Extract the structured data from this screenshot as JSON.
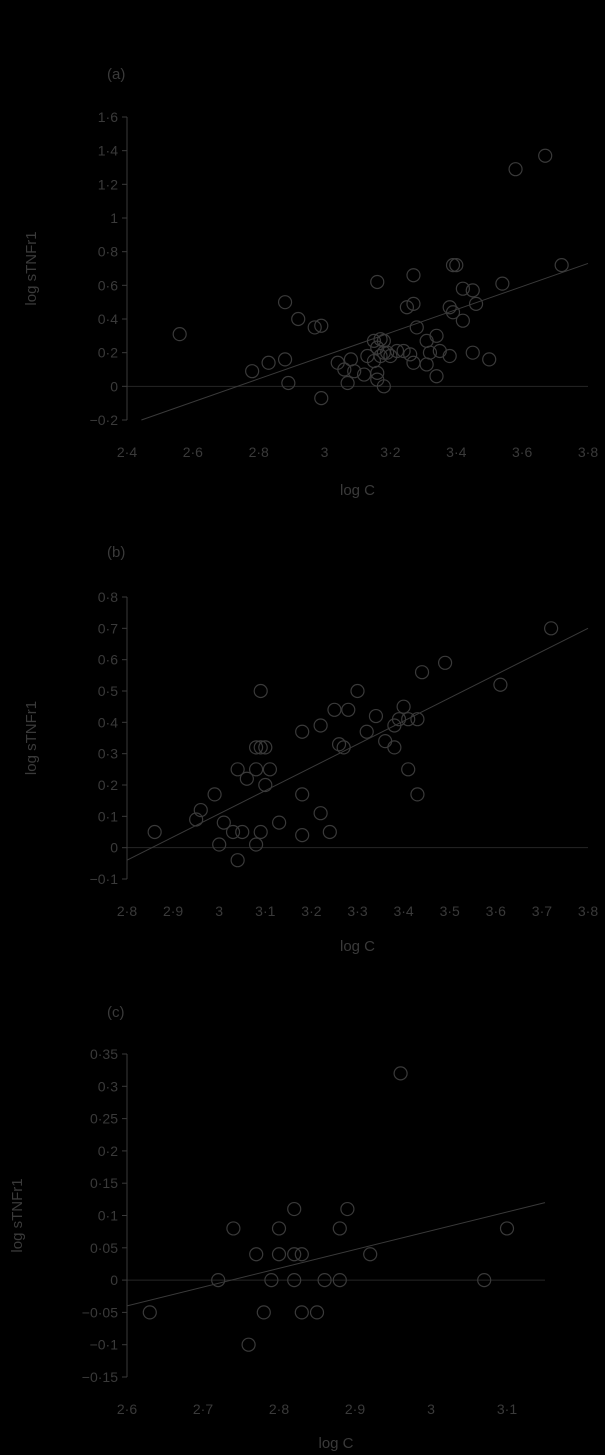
{
  "colors": {
    "background": "#000000",
    "foreground": "#3a3a3a",
    "zero_line": "#262626"
  },
  "chart_data": [
    {
      "type": "scatter",
      "panel_label": "(a)",
      "xlabel": "log C",
      "ylabel": "log sTNFr1",
      "xlim": [
        2.4,
        3.8
      ],
      "ylim": [
        -0.2,
        1.6
      ],
      "xticks": [
        2.4,
        2.6,
        2.8,
        3.0,
        3.2,
        3.4,
        3.6,
        3.8
      ],
      "xtick_labels": [
        "2·4",
        "2·6",
        "2·8",
        "3",
        "3·2",
        "3·4",
        "3·6",
        "3·8"
      ],
      "yticks": [
        -0.2,
        0,
        0.2,
        0.4,
        0.6,
        0.8,
        1.0,
        1.2,
        1.4,
        1.6
      ],
      "ytick_labels": [
        "−0·2",
        "0",
        "0·2",
        "0·4",
        "0·6",
        "0·8",
        "1",
        "1·2",
        "1·4",
        "1·6"
      ],
      "points": [
        [
          2.56,
          0.31
        ],
        [
          2.78,
          0.09
        ],
        [
          2.83,
          0.14
        ],
        [
          2.88,
          0.5
        ],
        [
          2.88,
          0.16
        ],
        [
          2.89,
          0.02
        ],
        [
          2.92,
          0.4
        ],
        [
          2.97,
          0.35
        ],
        [
          2.99,
          0.36
        ],
        [
          2.99,
          -0.07
        ],
        [
          3.04,
          0.14
        ],
        [
          3.06,
          0.1
        ],
        [
          3.07,
          0.02
        ],
        [
          3.08,
          0.16
        ],
        [
          3.09,
          0.09
        ],
        [
          3.12,
          0.07
        ],
        [
          3.13,
          0.18
        ],
        [
          3.15,
          0.15
        ],
        [
          3.15,
          0.27
        ],
        [
          3.16,
          0.62
        ],
        [
          3.16,
          0.23
        ],
        [
          3.16,
          0.08
        ],
        [
          3.16,
          0.04
        ],
        [
          3.17,
          0.28
        ],
        [
          3.17,
          0.18
        ],
        [
          3.18,
          0.27
        ],
        [
          3.18,
          0.2
        ],
        [
          3.18,
          0.0
        ],
        [
          3.19,
          0.2
        ],
        [
          3.2,
          0.18
        ],
        [
          3.22,
          0.21
        ],
        [
          3.24,
          0.21
        ],
        [
          3.25,
          0.47
        ],
        [
          3.26,
          0.19
        ],
        [
          3.27,
          0.49
        ],
        [
          3.27,
          0.14
        ],
        [
          3.27,
          0.66
        ],
        [
          3.28,
          0.35
        ],
        [
          3.31,
          0.13
        ],
        [
          3.31,
          0.27
        ],
        [
          3.32,
          0.2
        ],
        [
          3.34,
          0.06
        ],
        [
          3.34,
          0.3
        ],
        [
          3.35,
          0.21
        ],
        [
          3.38,
          0.47
        ],
        [
          3.38,
          0.18
        ],
        [
          3.39,
          0.72
        ],
        [
          3.39,
          0.44
        ],
        [
          3.4,
          0.72
        ],
        [
          3.42,
          0.58
        ],
        [
          3.42,
          0.39
        ],
        [
          3.45,
          0.57
        ],
        [
          3.45,
          0.2
        ],
        [
          3.46,
          0.49
        ],
        [
          3.5,
          0.16
        ],
        [
          3.54,
          0.61
        ],
        [
          3.58,
          1.29
        ],
        [
          3.67,
          1.37
        ],
        [
          3.72,
          0.72
        ]
      ],
      "fit_line": {
        "x": [
          2.4,
          3.8
        ],
        "y": [
          -0.23,
          0.73
        ]
      }
    },
    {
      "type": "scatter",
      "panel_label": "(b)",
      "xlabel": "log C",
      "ylabel": "log sTNFr1",
      "xlim": [
        2.8,
        3.8
      ],
      "ylim": [
        -0.1,
        0.8
      ],
      "xticks": [
        2.8,
        2.9,
        3.0,
        3.1,
        3.2,
        3.3,
        3.4,
        3.5,
        3.6,
        3.7,
        3.8
      ],
      "xtick_labels": [
        "2·8",
        "2·9",
        "3",
        "3·1",
        "3·2",
        "3·3",
        "3·4",
        "3·5",
        "3·6",
        "3·7",
        "3·8"
      ],
      "yticks": [
        -0.1,
        0,
        0.1,
        0.2,
        0.3,
        0.4,
        0.5,
        0.6,
        0.7,
        0.8
      ],
      "ytick_labels": [
        "−0·1",
        "0",
        "0·1",
        "0·2",
        "0·3",
        "0·4",
        "0·5",
        "0·6",
        "0·7",
        "0·8"
      ],
      "points": [
        [
          2.86,
          0.05
        ],
        [
          2.95,
          0.09
        ],
        [
          2.96,
          0.12
        ],
        [
          2.99,
          0.17
        ],
        [
          3.0,
          0.01
        ],
        [
          3.01,
          0.08
        ],
        [
          3.03,
          0.05
        ],
        [
          3.04,
          0.25
        ],
        [
          3.04,
          -0.04
        ],
        [
          3.05,
          0.05
        ],
        [
          3.06,
          0.22
        ],
        [
          3.08,
          0.25
        ],
        [
          3.08,
          0.32
        ],
        [
          3.08,
          0.01
        ],
        [
          3.09,
          0.5
        ],
        [
          3.09,
          0.32
        ],
        [
          3.09,
          0.05
        ],
        [
          3.1,
          0.32
        ],
        [
          3.1,
          0.2
        ],
        [
          3.11,
          0.25
        ],
        [
          3.13,
          0.08
        ],
        [
          3.18,
          0.37
        ],
        [
          3.18,
          0.17
        ],
        [
          3.18,
          0.04
        ],
        [
          3.22,
          0.39
        ],
        [
          3.22,
          0.11
        ],
        [
          3.24,
          0.05
        ],
        [
          3.25,
          0.44
        ],
        [
          3.26,
          0.33
        ],
        [
          3.27,
          0.32
        ],
        [
          3.28,
          0.44
        ],
        [
          3.3,
          0.5
        ],
        [
          3.32,
          0.37
        ],
        [
          3.34,
          0.42
        ],
        [
          3.36,
          0.34
        ],
        [
          3.38,
          0.39
        ],
        [
          3.38,
          0.32
        ],
        [
          3.39,
          0.41
        ],
        [
          3.4,
          0.45
        ],
        [
          3.41,
          0.25
        ],
        [
          3.41,
          0.41
        ],
        [
          3.43,
          0.41
        ],
        [
          3.43,
          0.17
        ],
        [
          3.44,
          0.56
        ],
        [
          3.49,
          0.59
        ],
        [
          3.61,
          0.52
        ],
        [
          3.72,
          0.7
        ]
      ],
      "fit_line": {
        "x": [
          2.8,
          3.8
        ],
        "y": [
          -0.04,
          0.7
        ]
      }
    },
    {
      "type": "scatter",
      "panel_label": "(c)",
      "xlabel": "log C",
      "ylabel": "log sTNFr1",
      "xlim": [
        2.6,
        3.15
      ],
      "ylim": [
        -0.15,
        0.35
      ],
      "xticks": [
        2.6,
        2.7,
        2.8,
        2.9,
        3.0,
        3.1
      ],
      "xtick_labels": [
        "2·6",
        "2·7",
        "2·8",
        "2·9",
        "3",
        "3·1"
      ],
      "yticks": [
        -0.15,
        -0.1,
        -0.05,
        0,
        0.05,
        0.1,
        0.15,
        0.2,
        0.25,
        0.3,
        0.35
      ],
      "ytick_labels": [
        "−0·15",
        "−0·1",
        "−0·05",
        "0",
        "0·05",
        "0·1",
        "0·15",
        "0·2",
        "0·25",
        "0·3",
        "0·35"
      ],
      "points": [
        [
          2.63,
          -0.05
        ],
        [
          2.72,
          0.0
        ],
        [
          2.74,
          0.08
        ],
        [
          2.76,
          -0.1
        ],
        [
          2.77,
          0.04
        ],
        [
          2.78,
          -0.05
        ],
        [
          2.79,
          0.0
        ],
        [
          2.8,
          0.08
        ],
        [
          2.8,
          0.04
        ],
        [
          2.82,
          0.11
        ],
        [
          2.82,
          0.04
        ],
        [
          2.82,
          0.0
        ],
        [
          2.83,
          0.04
        ],
        [
          2.83,
          -0.05
        ],
        [
          2.85,
          -0.05
        ],
        [
          2.86,
          0.0
        ],
        [
          2.88,
          0.08
        ],
        [
          2.88,
          0.0
        ],
        [
          2.89,
          0.11
        ],
        [
          2.92,
          0.04
        ],
        [
          2.96,
          0.32
        ],
        [
          3.07,
          0.0
        ],
        [
          3.1,
          0.08
        ]
      ],
      "fit_line": {
        "x": [
          2.6,
          3.15
        ],
        "y": [
          -0.04,
          0.12
        ]
      }
    }
  ]
}
